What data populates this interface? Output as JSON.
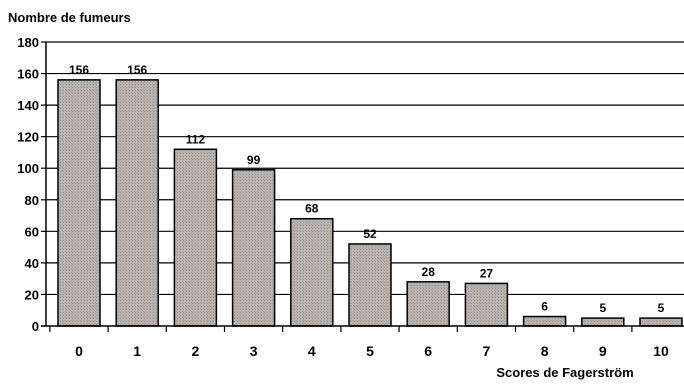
{
  "chart_data": {
    "type": "bar",
    "title": "",
    "ylabel": "Nombre de fumeurs",
    "xlabel": "Scores de Fagerström",
    "categories": [
      "0",
      "1",
      "2",
      "3",
      "4",
      "5",
      "6",
      "7",
      "8",
      "9",
      "10"
    ],
    "values": [
      156,
      156,
      112,
      99,
      68,
      52,
      28,
      27,
      6,
      5,
      5
    ],
    "data_labels": [
      "156",
      "156",
      "112",
      "99",
      "68",
      "52",
      "28",
      "27",
      "6",
      "5",
      "5"
    ],
    "ylim": [
      0,
      180
    ],
    "yticks": [
      0,
      20,
      40,
      60,
      80,
      100,
      120,
      140,
      160,
      180
    ],
    "ytick_labels": [
      "0",
      "20",
      "40",
      "60",
      "80",
      "100",
      "120",
      "140",
      "160",
      "180"
    ],
    "grid": true,
    "legend": "none",
    "colors": {
      "bar_fill": "#b3aca7",
      "bar_stroke": "#000000",
      "grid": "#000000",
      "axis": "#000000"
    }
  }
}
